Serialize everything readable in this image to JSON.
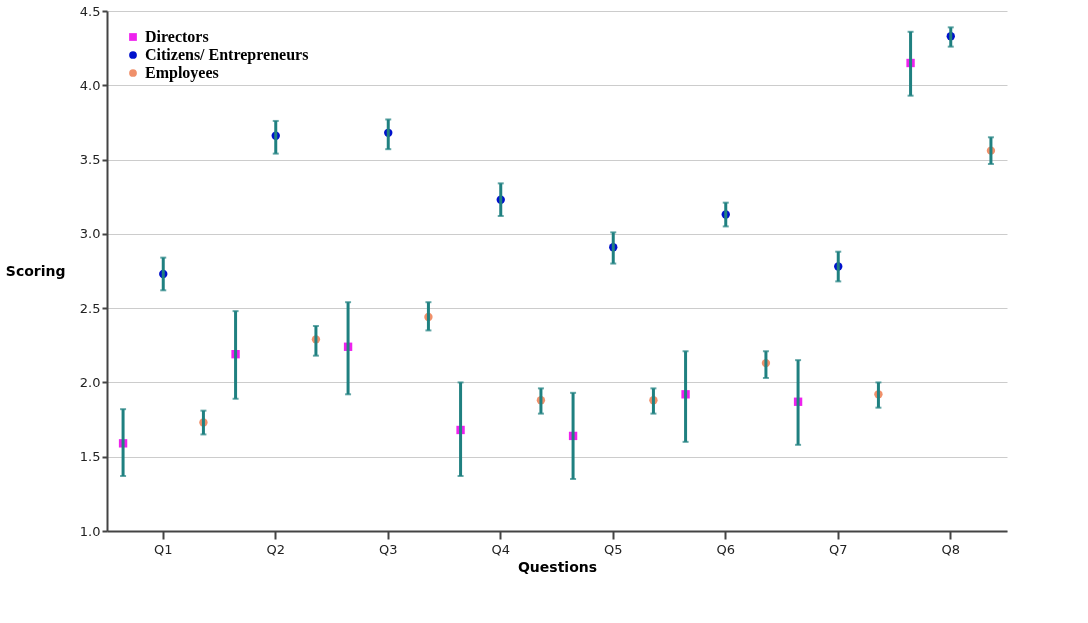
{
  "chart_data": {
    "type": "scatter",
    "xlabel": "Questions",
    "ylabel": "Scoring",
    "categories": [
      "Q1",
      "Q2",
      "Q3",
      "Q4",
      "Q5",
      "Q6",
      "Q7",
      "Q8"
    ],
    "series": [
      {
        "name": "Directors",
        "color": "#ee22ee",
        "marker": "square",
        "values": [
          1.59,
          2.19,
          2.24,
          1.68,
          1.64,
          1.92,
          1.87,
          4.15
        ],
        "errors": [
          [
            1.37,
            1.82
          ],
          [
            1.89,
            2.48
          ],
          [
            1.92,
            2.54
          ],
          [
            1.37,
            2.0
          ],
          [
            1.35,
            1.93
          ],
          [
            1.6,
            2.21
          ],
          [
            1.58,
            2.15
          ],
          [
            3.93,
            4.36
          ]
        ]
      },
      {
        "name": "Citizens/ Entrepreneurs",
        "color": "#0011cc",
        "marker": "circle",
        "values": [
          2.73,
          3.66,
          3.68,
          3.23,
          2.91,
          3.13,
          2.78,
          4.33
        ],
        "errors": [
          [
            2.62,
            2.84
          ],
          [
            3.54,
            3.76
          ],
          [
            3.57,
            3.77
          ],
          [
            3.12,
            3.34
          ],
          [
            2.8,
            3.01
          ],
          [
            3.05,
            3.21
          ],
          [
            2.68,
            2.88
          ],
          [
            4.26,
            4.39
          ]
        ]
      },
      {
        "name": "Employees",
        "color": "#f0906a",
        "marker": "circle",
        "values": [
          1.73,
          2.29,
          2.44,
          1.88,
          1.88,
          2.13,
          1.92,
          3.56
        ],
        "errors": [
          [
            1.65,
            1.81
          ],
          [
            2.18,
            2.38
          ],
          [
            2.35,
            2.54
          ],
          [
            1.79,
            1.96
          ],
          [
            1.79,
            1.96
          ],
          [
            2.03,
            2.21
          ],
          [
            1.83,
            2.0
          ],
          [
            3.47,
            3.65
          ]
        ]
      }
    ],
    "ylim": [
      1.0,
      4.5
    ],
    "yticks": [
      {
        "value": 1.0,
        "label": "1.0"
      },
      {
        "value": 1.5,
        "label": "1.5"
      },
      {
        "value": 2.0,
        "label": "2.0"
      },
      {
        "value": 2.5,
        "label": "2.5"
      },
      {
        "value": 3.0,
        "label": "3.0"
      },
      {
        "value": 3.5,
        "label": "3.5"
      },
      {
        "value": 4.0,
        "label": "4.0"
      },
      {
        "value": 4.5,
        "label": "4.5"
      }
    ],
    "grid": "y",
    "legend": "top left"
  }
}
